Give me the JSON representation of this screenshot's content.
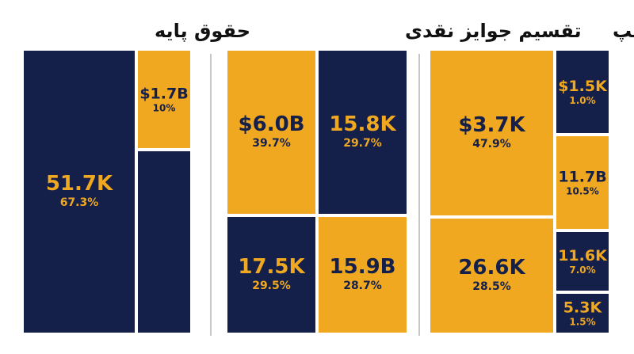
{
  "colors": {
    "navy": "#14204a",
    "orange": "#f0a820",
    "divider": "#c8c8c8",
    "title": "#111111"
  },
  "chart_data": [
    {
      "type": "treemap",
      "title": "حقوق پایه",
      "cells": [
        {
          "value_label": "51.7K",
          "percent_label": "67.3%",
          "percent": 67.3,
          "color": "navy"
        },
        {
          "value_label": "$1.7B",
          "percent_label": "10%",
          "percent": 10,
          "color": "orange"
        },
        {
          "value_label": "",
          "percent_label": "",
          "percent": 22.7,
          "color": "navy"
        }
      ]
    },
    {
      "type": "treemap",
      "title": "تقسیم جوایز نقدی",
      "cells": [
        {
          "value_label": "$6.0B",
          "percent_label": "39.7%",
          "percent": 39.7,
          "color": "orange"
        },
        {
          "value_label": "15.8K",
          "percent_label": "29.7%",
          "percent": 29.7,
          "color": "navy"
        },
        {
          "value_label": "17.5K",
          "percent_label": "29.5%",
          "percent": 29.5,
          "color": "navy"
        },
        {
          "value_label": "15.9B",
          "percent_label": "28.7%",
          "percent": 28.7,
          "color": "orange"
        }
      ]
    },
    {
      "type": "treemap",
      "title": "استریم/اسپانسرشیپ",
      "cells": [
        {
          "value_label": "$3.7K",
          "percent_label": "47.9%",
          "percent": 47.9,
          "color": "orange"
        },
        {
          "value_label": "26.6K",
          "percent_label": "28.5%",
          "percent": 28.5,
          "color": "orange"
        },
        {
          "value_label": "$1.5K",
          "percent_label": "1.0%",
          "percent": 1.0,
          "color": "navy"
        },
        {
          "value_label": "11.7B",
          "percent_label": "10.5%",
          "percent": 10.5,
          "color": "orange"
        },
        {
          "value_label": "11.6K",
          "percent_label": "7.0%",
          "percent": 7.0,
          "color": "navy"
        },
        {
          "value_label": "5.3K",
          "percent_label": "1.5%",
          "percent": 1.5,
          "color": "navy"
        }
      ]
    }
  ]
}
